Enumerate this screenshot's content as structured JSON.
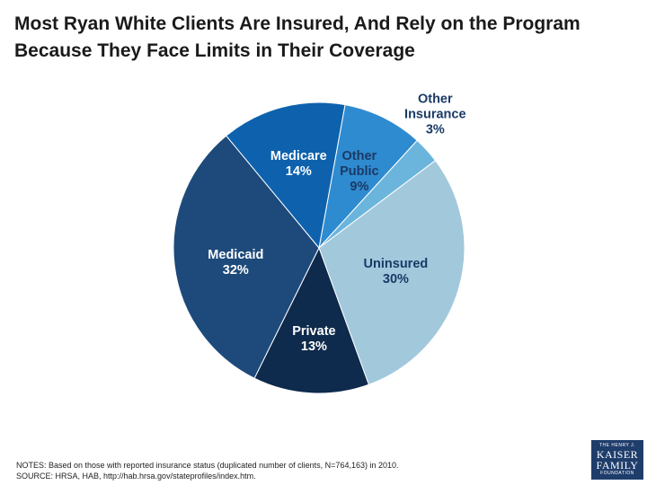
{
  "title": "Most Ryan White Clients Are Insured, And Rely on the Program Because They Face Limits in Their Coverage",
  "chart_data": {
    "type": "pie",
    "title": "Most Ryan White Clients Are Insured, And Rely on the Program Because They Face Limits in Their Coverage",
    "slices": [
      {
        "name": "Other Public",
        "label_lines": [
          "Other",
          "Public"
        ],
        "pct_label": "9%",
        "value": 9,
        "color": "#2f8bd0",
        "text_color": "#1a3a66"
      },
      {
        "name": "Other Insurance",
        "label_lines": [
          "Other",
          "Insurance"
        ],
        "pct_label": "3%",
        "value": 3,
        "color": "#6bb5dd",
        "text_color": "#1a3a66"
      },
      {
        "name": "Uninsured",
        "label_lines": [
          "Uninsured"
        ],
        "pct_label": "30%",
        "value": 30,
        "color": "#a2c8dc",
        "text_color": "#1a3a66"
      },
      {
        "name": "Private",
        "label_lines": [
          "Private"
        ],
        "pct_label": "13%",
        "value": 13,
        "color": "#0e2a4c",
        "text_color": "#ffffff"
      },
      {
        "name": "Medicaid",
        "label_lines": [
          "Medicaid"
        ],
        "pct_label": "32%",
        "value": 32,
        "color": "#1e4a7b",
        "text_color": "#ffffff"
      },
      {
        "name": "Medicare",
        "label_lines": [
          "Medicare"
        ],
        "pct_label": "14%",
        "value": 14,
        "color": "#0e62ad",
        "text_color": "#ffffff"
      }
    ]
  },
  "notes": {
    "line1": "NOTES: Based on those with reported insurance status (duplicated number of clients, N=764,163) in 2010.",
    "line2": "SOURCE: HRSA, HAB, http://hab.hrsa.gov/stateprofiles/index.htm."
  },
  "logo": {
    "line1": "THE HENRY J.",
    "line2": "KAISER",
    "line3": "FAMILY",
    "line4": "FOUNDATION"
  }
}
